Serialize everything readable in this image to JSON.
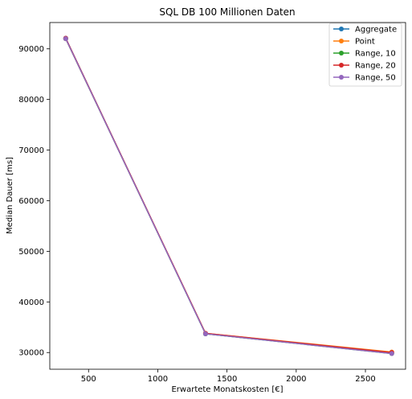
{
  "chart_data": {
    "type": "line",
    "title": "SQL DB 100 Millionen Daten",
    "xlabel": "Erwartete Monatskosten [€]",
    "ylabel": "Median Dauer [ms]",
    "xlim": [
      220,
      2790
    ],
    "ylim": [
      26700,
      95200
    ],
    "xticks": [
      500,
      1000,
      1500,
      2000,
      2500
    ],
    "yticks": [
      30000,
      40000,
      50000,
      60000,
      70000,
      80000,
      90000
    ],
    "legend_position": "top-right",
    "grid": false,
    "x": [
      335,
      1345,
      2690
    ],
    "series": [
      {
        "name": "Aggregate",
        "color": "#1f77b4",
        "values": [
          92100,
          33700,
          29900
        ]
      },
      {
        "name": "Point",
        "color": "#ff7f0e",
        "values": [
          92000,
          33800,
          30100
        ]
      },
      {
        "name": "Range, 10",
        "color": "#2ca02c",
        "values": [
          92000,
          33700,
          29800
        ]
      },
      {
        "name": "Range, 20",
        "color": "#d62728",
        "values": [
          92100,
          33800,
          30000
        ]
      },
      {
        "name": "Range, 50",
        "color": "#9467bd",
        "values": [
          92000,
          33700,
          29800
        ]
      }
    ]
  }
}
